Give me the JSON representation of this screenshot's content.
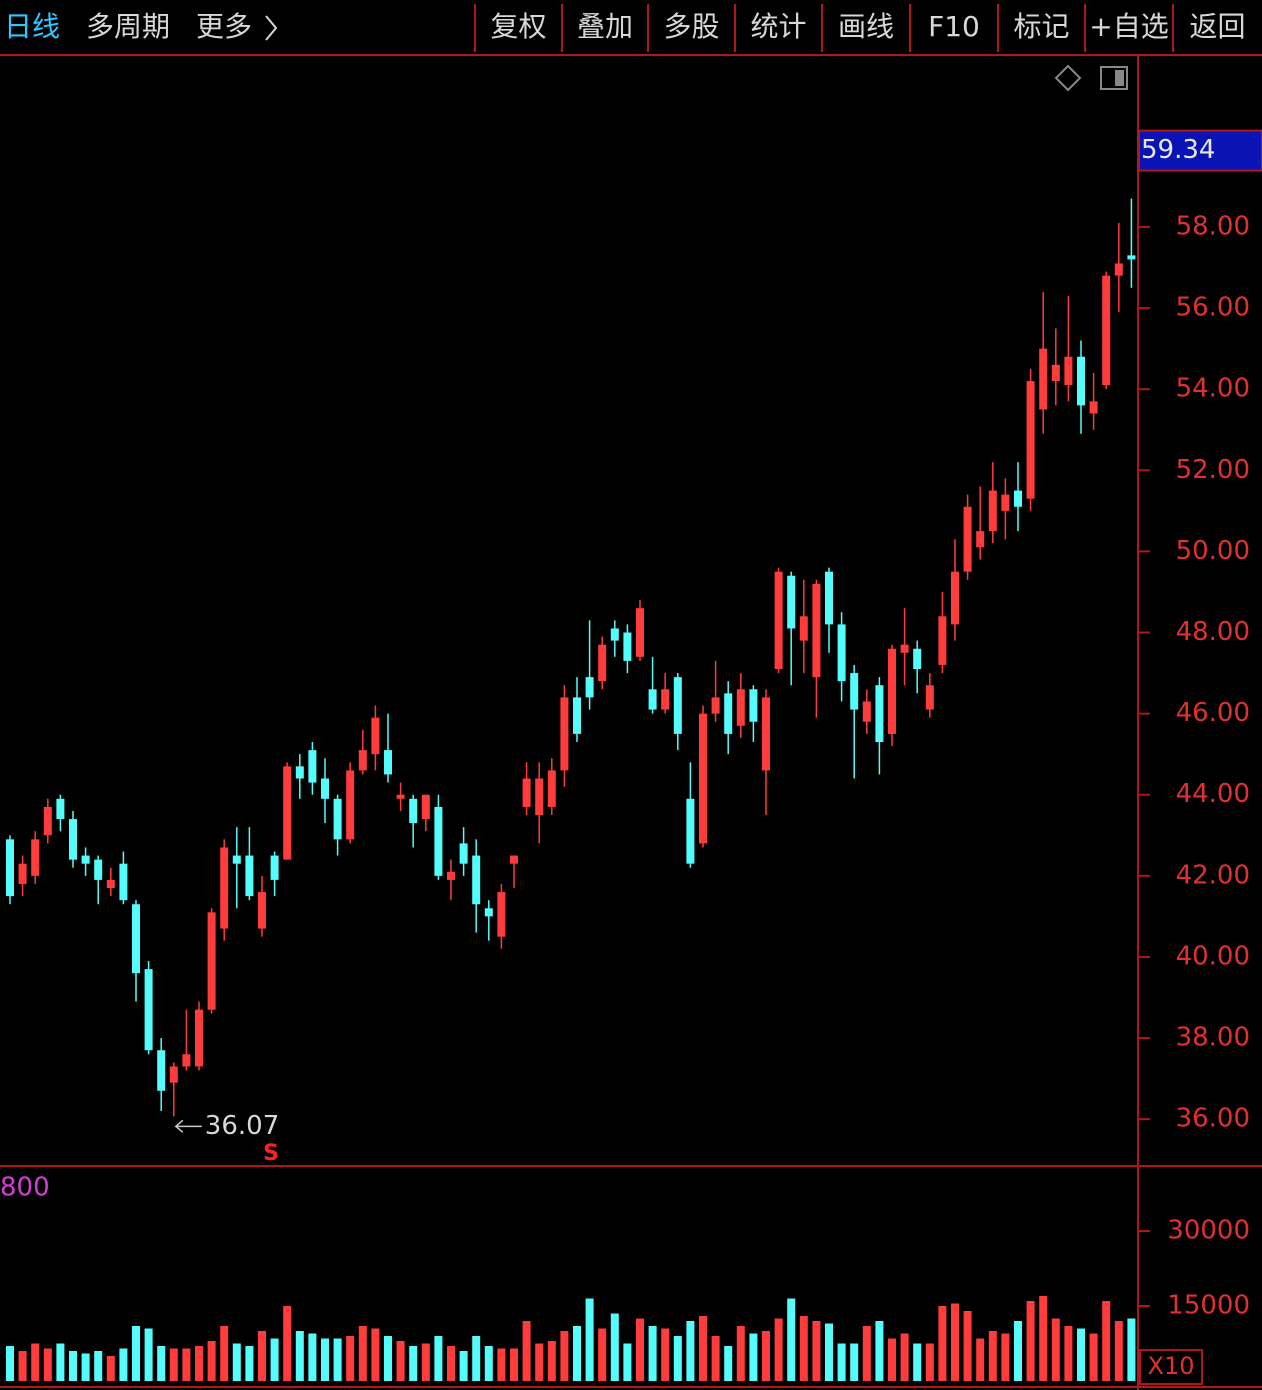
{
  "toolbar": {
    "left": [
      "日线",
      "多周期",
      "更多"
    ],
    "right": [
      "复权",
      "叠加",
      "多股",
      "统计",
      "画线",
      "F10",
      "标记",
      "+自选",
      "返回"
    ]
  },
  "chart_data": [
    {
      "type": "candlestick",
      "up_color": "#ff3c3c",
      "down_color": "#54fcfc",
      "ylim": [
        34.87,
        62.24
      ],
      "yticks": [
        {
          "value": 36,
          "label": "36.00"
        },
        {
          "value": 38,
          "label": "38.00"
        },
        {
          "value": 40,
          "label": "40.00"
        },
        {
          "value": 42,
          "label": "42.00"
        },
        {
          "value": 44,
          "label": "44.00"
        },
        {
          "value": 46,
          "label": "46.00"
        },
        {
          "value": 48,
          "label": "48.00"
        },
        {
          "value": 50,
          "label": "50.00"
        },
        {
          "value": 52,
          "label": "52.00"
        },
        {
          "value": 54,
          "label": "54.00"
        },
        {
          "value": 56,
          "label": "56.00"
        },
        {
          "value": 58,
          "label": "58.00"
        }
      ],
      "crosshair_value": {
        "value": 59.34,
        "label": "59.34"
      },
      "low_label": "36.07",
      "signal": "S",
      "open": [
        42.9,
        41.8,
        42.0,
        43.0,
        43.9,
        43.4,
        42.5,
        42.4,
        41.7,
        42.3,
        41.3,
        39.7,
        37.7,
        36.9,
        37.3,
        37.3,
        38.7,
        40.7,
        42.5,
        42.5,
        40.7,
        42.5,
        42.4,
        44.7,
        45.1,
        44.4,
        43.9,
        42.9,
        44.6,
        45.0,
        45.1,
        43.9,
        43.9,
        43.4,
        43.7,
        41.9,
        42.8,
        42.5,
        41.2,
        40.5,
        42.3,
        43.7,
        43.5,
        43.7,
        44.6,
        46.4,
        46.9,
        46.8,
        48.1,
        48.0,
        47.4,
        46.6,
        46.1,
        46.9,
        43.9,
        42.8,
        46.0,
        46.5,
        45.7,
        46.6,
        44.6,
        47.1,
        49.4,
        47.8,
        46.9,
        49.5,
        48.2,
        47.0,
        45.8,
        46.7,
        45.5,
        47.5,
        47.6,
        46.1,
        47.2,
        48.2,
        49.5,
        50.1,
        50.5,
        51.0,
        51.5,
        51.3,
        53.5,
        54.2,
        54.1,
        54.8,
        53.4,
        54.1,
        56.8,
        57.3
      ],
      "close": [
        41.5,
        42.3,
        42.9,
        43.7,
        43.4,
        42.4,
        42.3,
        41.9,
        41.9,
        41.4,
        39.6,
        37.7,
        36.7,
        37.3,
        37.6,
        38.7,
        41.1,
        42.7,
        42.3,
        41.5,
        41.6,
        41.9,
        44.7,
        44.4,
        44.3,
        43.9,
        42.9,
        44.6,
        45.1,
        45.9,
        44.5,
        44.0,
        43.3,
        44.0,
        42.0,
        42.1,
        42.3,
        41.3,
        41.0,
        41.6,
        42.5,
        44.4,
        44.4,
        44.6,
        46.4,
        45.5,
        46.4,
        47.7,
        47.8,
        47.3,
        48.6,
        46.1,
        46.6,
        45.5,
        42.3,
        46.0,
        46.4,
        45.5,
        46.6,
        45.8,
        46.4,
        49.5,
        48.1,
        48.4,
        49.2,
        48.2,
        46.8,
        46.1,
        46.3,
        45.3,
        47.6,
        47.7,
        47.1,
        46.7,
        48.4,
        49.5,
        51.1,
        50.5,
        51.5,
        51.4,
        51.1,
        54.2,
        55.0,
        54.6,
        54.8,
        53.6,
        53.7,
        56.8,
        57.1,
        57.2
      ],
      "high": [
        43.0,
        42.5,
        43.1,
        43.9,
        44.0,
        43.6,
        42.7,
        42.5,
        42.2,
        42.6,
        41.4,
        39.9,
        38.0,
        37.4,
        38.7,
        38.9,
        41.2,
        42.9,
        43.2,
        43.2,
        42.0,
        42.6,
        44.8,
        45.0,
        45.3,
        44.9,
        44.0,
        44.8,
        45.6,
        46.2,
        46.0,
        44.3,
        44.0,
        44.0,
        44.0,
        42.4,
        43.2,
        42.9,
        41.4,
        41.8,
        42.5,
        44.8,
        44.8,
        44.9,
        46.7,
        46.9,
        48.3,
        47.9,
        48.3,
        48.2,
        48.8,
        47.4,
        47.0,
        47.0,
        44.8,
        46.2,
        47.3,
        46.8,
        47.0,
        46.7,
        46.6,
        49.6,
        49.5,
        49.3,
        49.3,
        49.6,
        48.5,
        47.2,
        46.6,
        46.9,
        47.7,
        48.6,
        47.8,
        47.0,
        49.0,
        50.3,
        51.4,
        51.6,
        52.2,
        51.8,
        52.2,
        54.5,
        56.4,
        55.5,
        56.3,
        55.2,
        54.4,
        56.9,
        58.1,
        58.7
      ],
      "low": [
        41.3,
        41.5,
        41.8,
        42.8,
        43.1,
        42.2,
        42.0,
        41.3,
        41.5,
        41.3,
        38.9,
        37.6,
        36.2,
        36.07,
        37.2,
        37.2,
        38.6,
        40.4,
        41.2,
        41.4,
        40.5,
        41.5,
        42.4,
        43.9,
        44.0,
        43.3,
        42.5,
        42.8,
        44.5,
        44.6,
        44.3,
        43.6,
        42.7,
        43.1,
        41.9,
        41.4,
        42.0,
        40.6,
        40.4,
        40.2,
        41.7,
        43.5,
        42.8,
        43.5,
        44.2,
        45.3,
        46.1,
        46.6,
        47.4,
        47.0,
        47.3,
        46.0,
        46.0,
        45.1,
        42.2,
        42.7,
        45.8,
        45.0,
        45.4,
        45.3,
        43.5,
        47.0,
        46.7,
        47.0,
        45.9,
        47.5,
        46.3,
        44.4,
        45.5,
        44.5,
        45.2,
        46.7,
        46.5,
        45.9,
        47.0,
        47.8,
        49.3,
        49.8,
        50.2,
        50.3,
        50.5,
        51.0,
        52.9,
        53.6,
        53.7,
        52.9,
        53.0,
        54.0,
        55.9,
        56.5
      ]
    },
    {
      "type": "bar",
      "corner_label": "800",
      "unit_label": "X10",
      "ylim": [
        0,
        42800
      ],
      "yticks": [
        15000,
        30000
      ],
      "values": [
        7000,
        6000,
        7500,
        6500,
        7500,
        6000,
        5500,
        6000,
        5000,
        6500,
        11000,
        10500,
        7000,
        6500,
        6500,
        7000,
        8000,
        11000,
        7500,
        7000,
        10000,
        8500,
        15000,
        10000,
        9500,
        8500,
        8500,
        9000,
        11000,
        10500,
        9000,
        8000,
        7000,
        7500,
        9000,
        7000,
        6000,
        9000,
        7000,
        6500,
        6500,
        12000,
        7500,
        8000,
        10000,
        11000,
        16500,
        10500,
        13500,
        7500,
        12500,
        11000,
        10500,
        9000,
        12000,
        13000,
        9000,
        7000,
        11000,
        9500,
        10000,
        12500,
        16500,
        13000,
        12000,
        11500,
        7500,
        7500,
        11000,
        12000,
        8500,
        9500,
        7500,
        7500,
        15000,
        15500,
        14000,
        8500,
        10000,
        9500,
        12000,
        16000,
        17000,
        12500,
        11000,
        10500,
        9500,
        16000,
        12000,
        12500
      ]
    }
  ]
}
